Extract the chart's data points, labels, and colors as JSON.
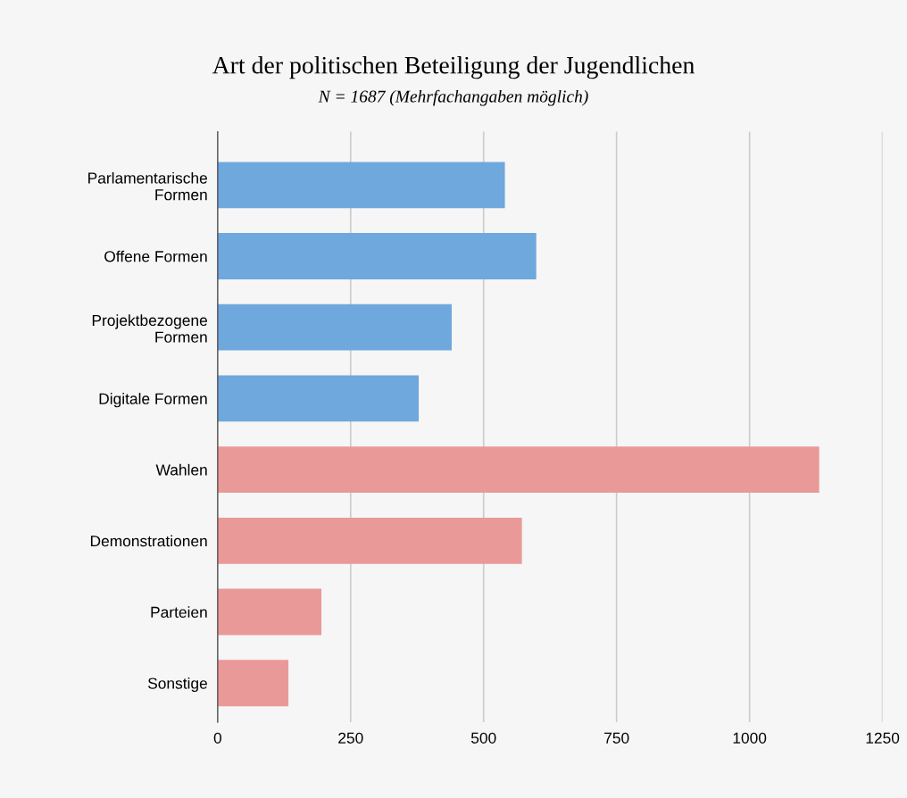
{
  "chart_data": {
    "type": "bar",
    "orientation": "horizontal",
    "title": "Art der politischen Beteiligung der Jugendlichen",
    "subtitle": "N = 1687 (Mehrfachangaben möglich)",
    "categories": [
      "Parlamentarische\nFormen",
      "Offene Formen",
      "Projektbezogene\nFormen",
      "Digitale Formen",
      "Wahlen",
      "Demonstrationen",
      "Parteien",
      "Sonstige"
    ],
    "values": [
      540,
      599,
      440,
      378,
      1131,
      572,
      195,
      133
    ],
    "colors": [
      "#6fa8dc",
      "#6fa8dc",
      "#6fa8dc",
      "#6fa8dc",
      "#ea9999",
      "#ea9999",
      "#ea9999",
      "#ea9999"
    ],
    "xlim": [
      0,
      1250
    ],
    "xticks": [
      0,
      250,
      500,
      750,
      1000,
      1250
    ],
    "grid": "x"
  }
}
